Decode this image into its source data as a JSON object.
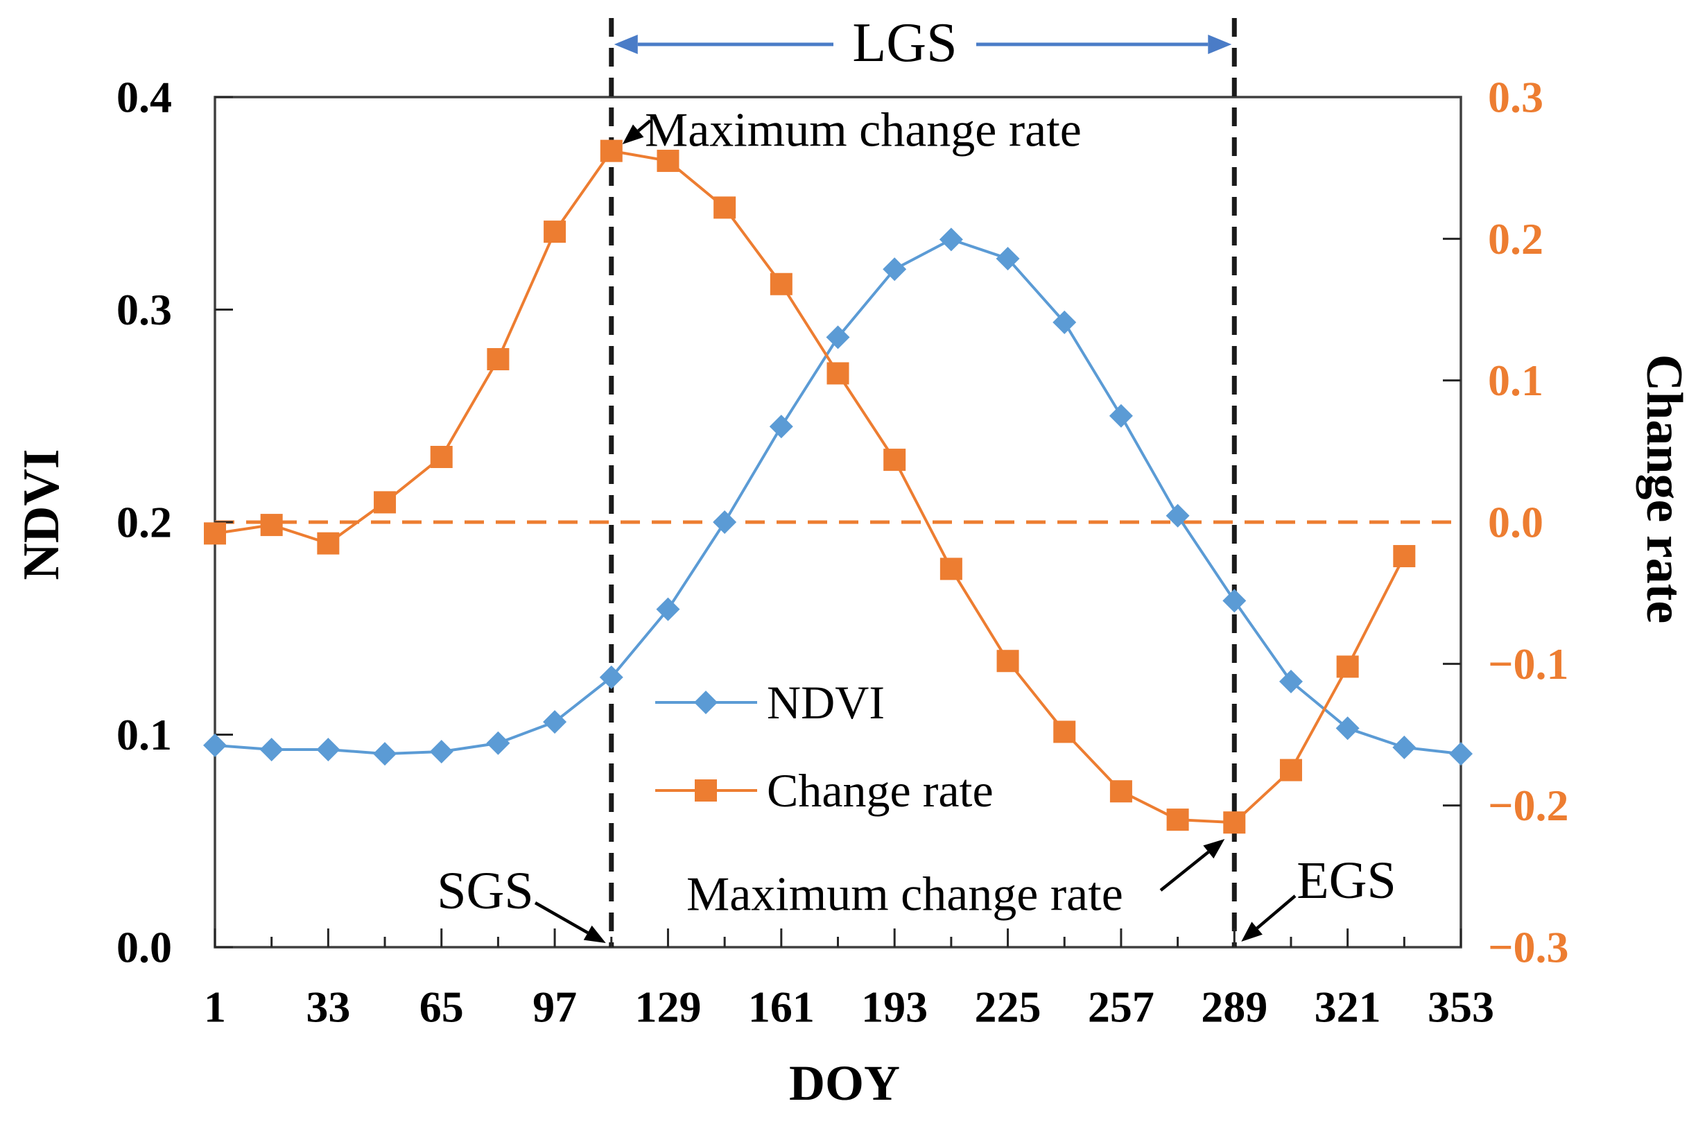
{
  "figure": {
    "annotations": {
      "lgs": "LGS",
      "sgs": "SGS",
      "egs": "EGS",
      "max_change_rate_top": "Maximum change rate",
      "max_change_rate_bottom": "Maximum change rate"
    },
    "legend": [
      {
        "label": "NDVI",
        "marker": "diamond",
        "color": "#5B9BD5"
      },
      {
        "label": "Change rate",
        "marker": "square",
        "color": "#ED7D31"
      }
    ],
    "colors": {
      "ndvi_series": "#5B9BD5",
      "change_rate_series": "#ED7D31",
      "lgs_arrow": "#4a7cc7",
      "axis_box": "#404040",
      "dashed_vline": "#1a1a1a",
      "zero_line": "#ED7D31",
      "right_axis_text": "#ED7D31",
      "text": "#000000"
    }
  },
  "chart_data": {
    "type": "line",
    "title": "",
    "xlabel": "DOY",
    "ylabel_left": "NDVI",
    "ylabel_right": "Change rate",
    "x": [
      1,
      17,
      33,
      49,
      65,
      81,
      97,
      113,
      129,
      145,
      161,
      177,
      193,
      209,
      225,
      241,
      257,
      273,
      289,
      305,
      321,
      337,
      353
    ],
    "series": [
      {
        "name": "NDVI",
        "axis": "left",
        "marker": "diamond",
        "color": "#5B9BD5",
        "values": [
          0.095,
          0.093,
          0.093,
          0.091,
          0.092,
          0.096,
          0.106,
          0.127,
          0.159,
          0.2,
          0.245,
          0.287,
          0.319,
          0.333,
          0.324,
          0.294,
          0.25,
          0.203,
          0.163,
          0.125,
          0.103,
          0.094,
          0.091
        ]
      },
      {
        "name": "Change rate",
        "axis": "right",
        "marker": "square",
        "color": "#ED7D31",
        "values": [
          -0.008,
          -0.002,
          -0.015,
          0.014,
          0.046,
          0.115,
          0.205,
          0.262,
          0.255,
          0.222,
          0.168,
          0.105,
          0.044,
          -0.033,
          -0.098,
          -0.148,
          -0.19,
          -0.21,
          -0.212,
          -0.175,
          -0.102,
          -0.024,
          null
        ]
      }
    ],
    "xlim": [
      1,
      353
    ],
    "x_ticks_major": [
      1,
      33,
      65,
      97,
      129,
      161,
      193,
      225,
      257,
      289,
      321,
      353
    ],
    "x_ticks_minor": [
      17,
      49,
      81,
      113,
      145,
      177,
      209,
      241,
      273,
      305,
      337
    ],
    "ylim_left": [
      0.0,
      0.4
    ],
    "yticks_left": [
      {
        "v": 0.0,
        "label": "0.0"
      },
      {
        "v": 0.1,
        "label": "0.1"
      },
      {
        "v": 0.2,
        "label": "0.2"
      },
      {
        "v": 0.3,
        "label": "0.3"
      },
      {
        "v": 0.4,
        "label": "0.4"
      }
    ],
    "ylim_right": [
      -0.3,
      0.3
    ],
    "yticks_right": [
      {
        "v": 0.3,
        "label": "0.3"
      },
      {
        "v": 0.2,
        "label": "0.2"
      },
      {
        "v": 0.1,
        "label": "0.1"
      },
      {
        "v": 0.0,
        "label": "0.0"
      },
      {
        "v": -0.1,
        "label": "−0.1"
      },
      {
        "v": -0.2,
        "label": "−0.2"
      },
      {
        "v": -0.3,
        "label": "−0.3"
      }
    ],
    "right_ticks_marked": [
      0.2,
      0.1,
      -0.1,
      -0.2
    ],
    "zero_line_right_value": 0.0,
    "sgs_doy": 113,
    "egs_doy": 289,
    "max_change_rate_doy": 113,
    "min_change_rate_doy": 289,
    "grid": false,
    "legend_position": "inside-center-left"
  }
}
